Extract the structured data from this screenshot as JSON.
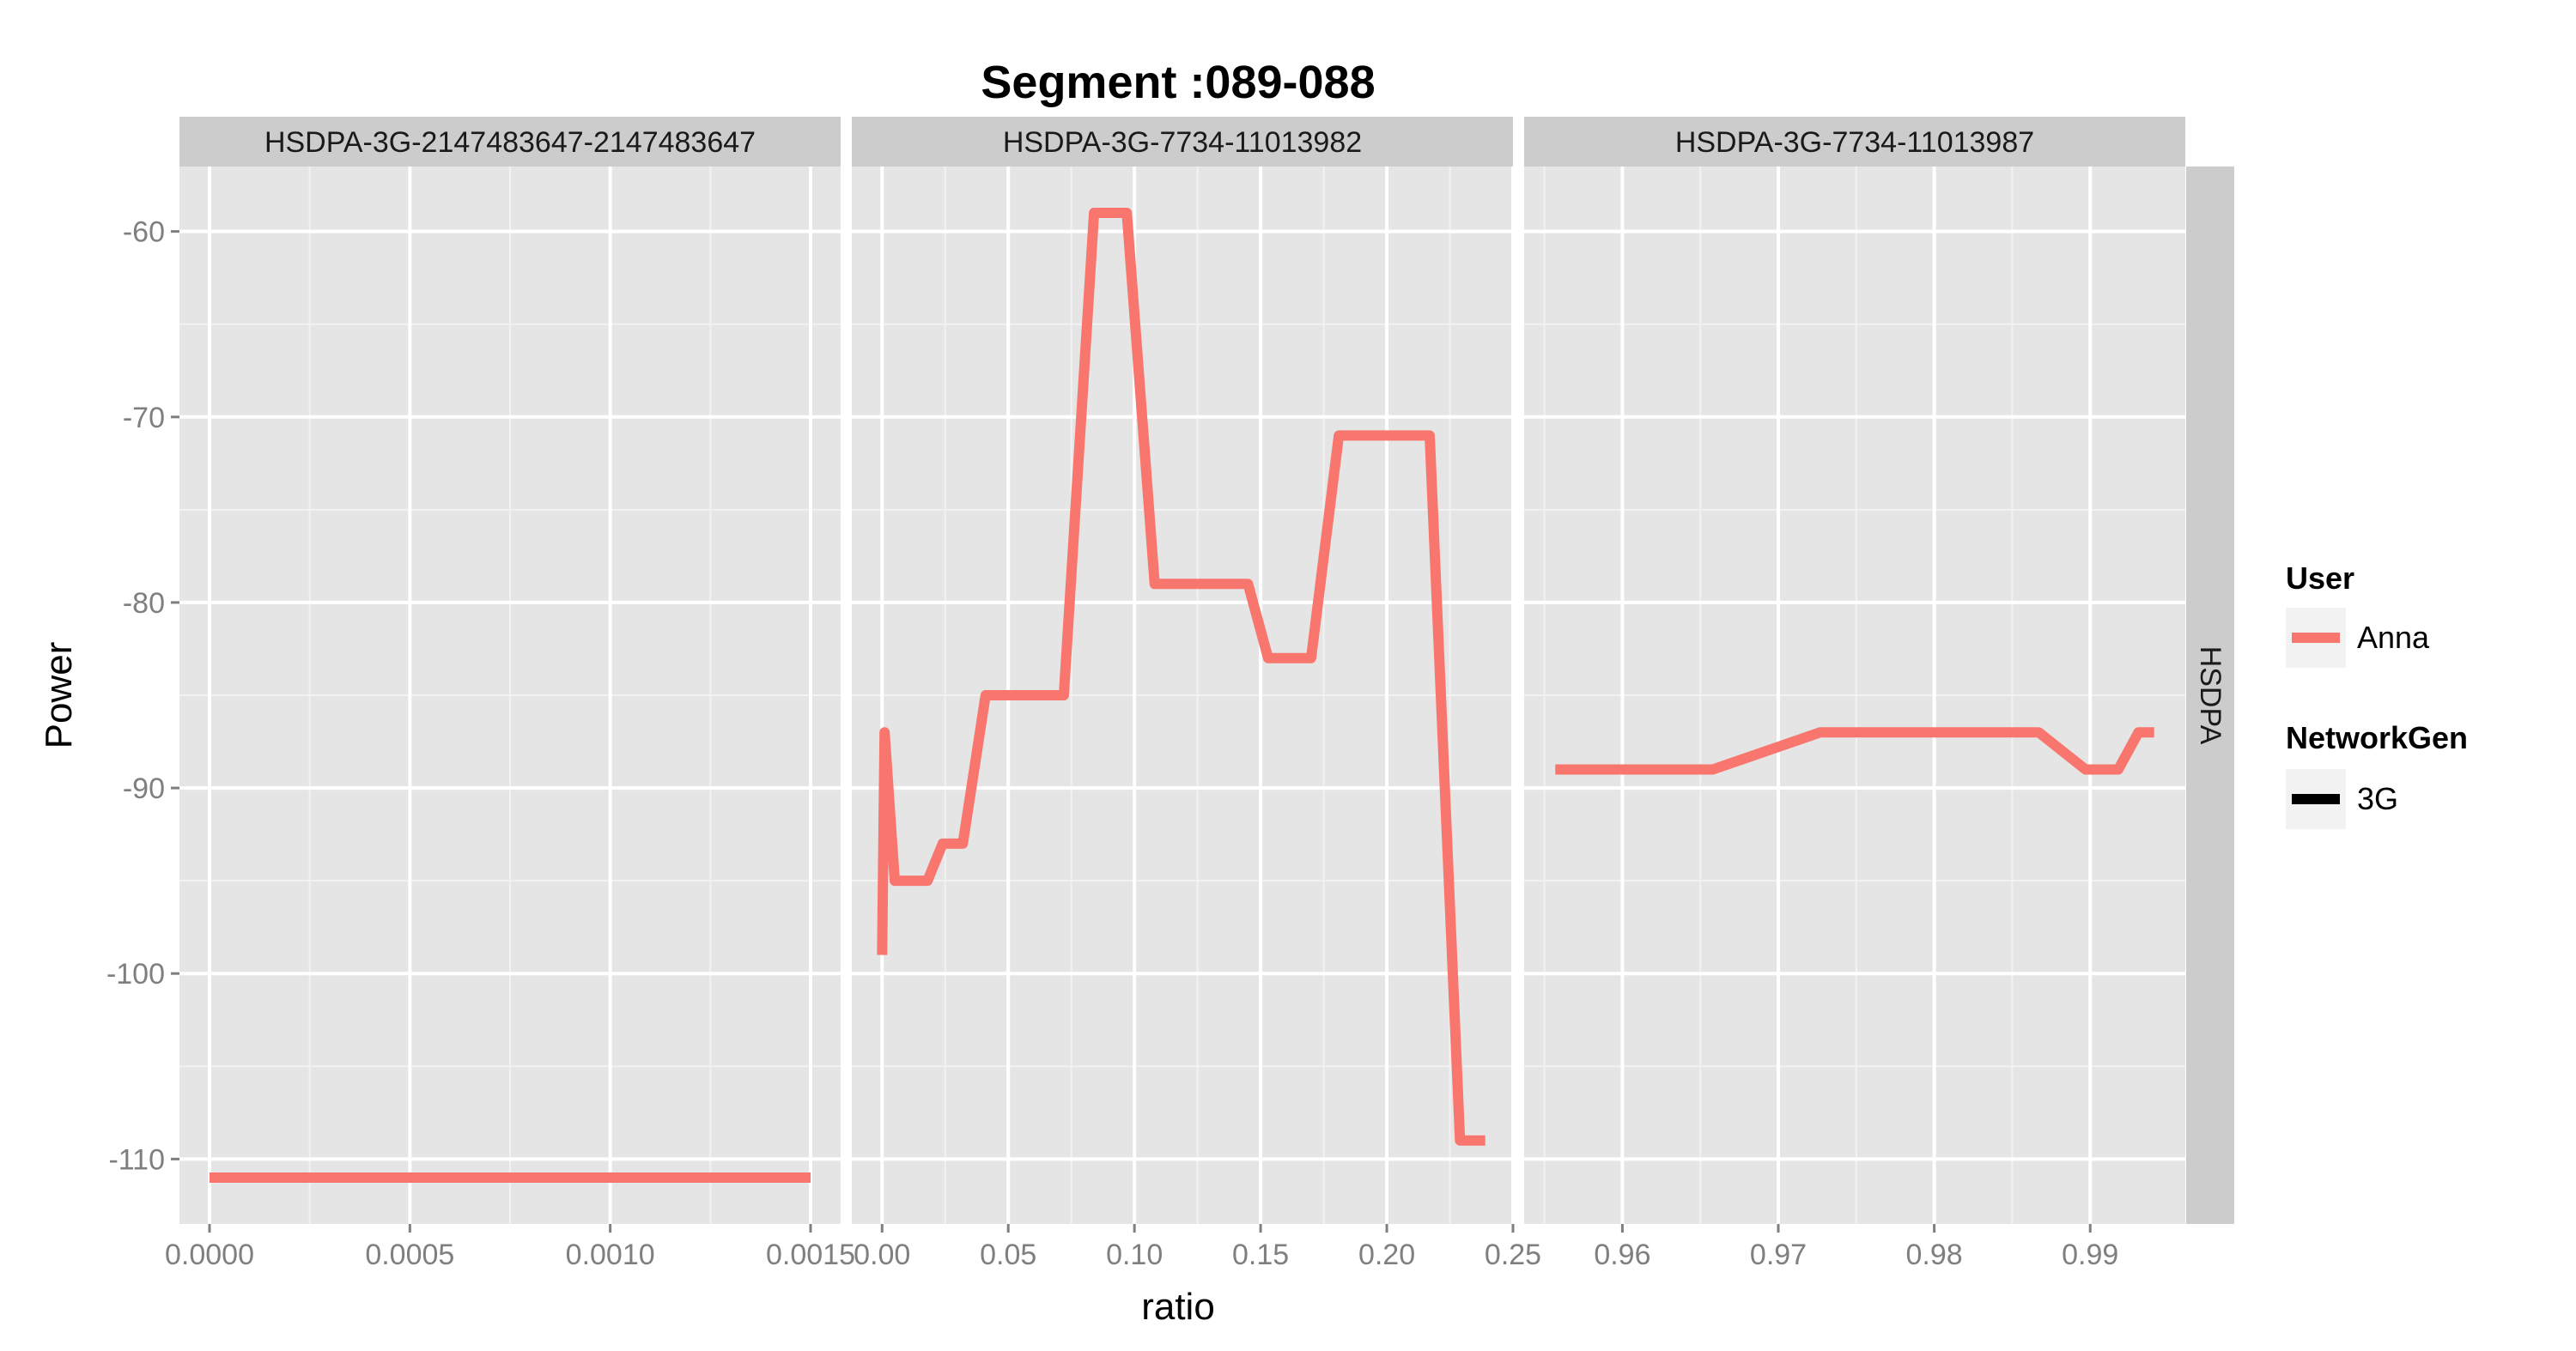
{
  "chart_data": {
    "type": "line",
    "title": "Segment :089-088",
    "xlabel": "ratio",
    "ylabel": "Power",
    "row_strip": "HSDPA",
    "y_ticks": [
      "-60",
      "-70",
      "-80",
      "-90",
      "-100",
      "-110"
    ],
    "ylim": [
      -113.5,
      -56.5
    ],
    "grid": true,
    "legend_position": "right",
    "colors": {
      "series": "#F8766D",
      "panel_bg": "#E5E5E5",
      "strip_bg": "#CCCCCC",
      "grid_major": "#FFFFFF",
      "grid_minor": "#F2F2F2"
    },
    "legend": {
      "user": {
        "title": "User",
        "entries": [
          "Anna"
        ]
      },
      "network": {
        "title": "NetworkGen",
        "entries": [
          "3G"
        ]
      }
    },
    "panels": [
      {
        "strip": "HSDPA-3G-2147483647-2147483647",
        "xlim": [
          -7.5e-05,
          0.001575
        ],
        "x_ticks": [
          0,
          0.0005,
          0.001,
          0.0015
        ],
        "x_tick_labels": [
          "0.0000",
          "0.0005",
          "0.0010",
          "0.0015"
        ],
        "series": [
          {
            "name": "Anna",
            "x": [
              0,
              0.0015
            ],
            "y": [
              -111,
              -111
            ]
          }
        ]
      },
      {
        "strip": "HSDPA-3G-7734-11013982",
        "xlim": [
          -0.012,
          0.25
        ],
        "x_ticks": [
          0,
          0.05,
          0.1,
          0.15,
          0.2,
          0.25
        ],
        "x_tick_labels": [
          "0.00",
          "0.05",
          "0.10",
          "0.15",
          "0.20",
          "0.25"
        ],
        "series": [
          {
            "name": "Anna",
            "x": [
              0.0,
              0.001,
              0.005,
              0.018,
              0.024,
              0.032,
              0.041,
              0.072,
              0.084,
              0.097,
              0.108,
              0.145,
              0.153,
              0.17,
              0.181,
              0.2,
              0.217,
              0.229,
              0.239
            ],
            "y": [
              -99,
              -87,
              -95,
              -95,
              -93,
              -93,
              -85,
              -85,
              -59,
              -59,
              -79,
              -79,
              -83,
              -83,
              -71,
              -71,
              -71,
              -109,
              -109
            ]
          }
        ]
      },
      {
        "strip": "HSDPA-3G-7734-11013987",
        "xlim": [
          0.9537,
          0.9961
        ],
        "x_ticks": [
          0.96,
          0.97,
          0.98,
          0.99
        ],
        "x_tick_labels": [
          "0.96",
          "0.97",
          "0.98",
          "0.99"
        ],
        "series": [
          {
            "name": "Anna",
            "x": [
              0.9557,
              0.9658,
              0.9727,
              0.9867,
              0.9897,
              0.9918,
              0.9931,
              0.9941
            ],
            "y": [
              -89,
              -89,
              -87,
              -87,
              -89,
              -89,
              -87,
              -87
            ]
          }
        ]
      }
    ]
  }
}
